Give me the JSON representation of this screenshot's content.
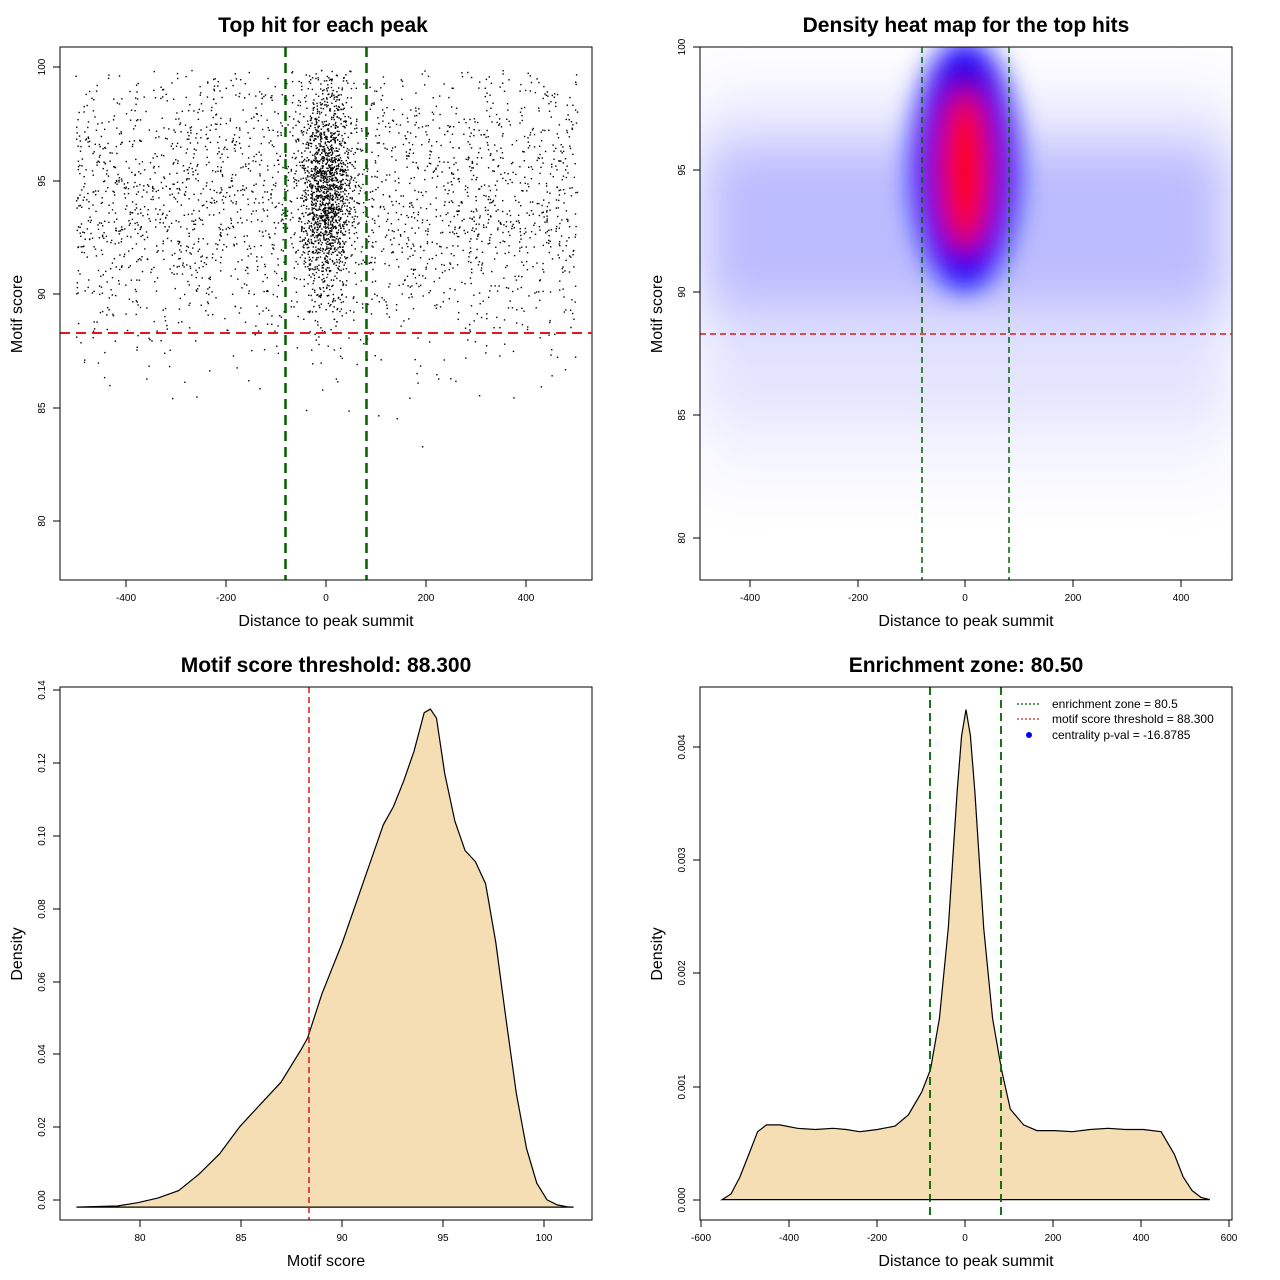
{
  "colors": {
    "threshold_line": "#e0191c",
    "zone_line": "#006400",
    "density_fill": "#f5deb3",
    "heat_low": "#ffffff",
    "heat_mid": "#0000ff",
    "heat_high": "#ff0000",
    "points": "#000000"
  },
  "panels": {
    "scatter": {
      "title": "Top hit for each peak",
      "xlabel": "Distance to peak summit",
      "ylabel": "Motif score",
      "xticks": [
        "-400",
        "-200",
        "0",
        "200",
        "400"
      ],
      "yticks": [
        "80",
        "85",
        "90",
        "95",
        "100"
      ]
    },
    "heatmap": {
      "title": "Density heat map for the top hits",
      "xlabel": "Distance to peak summit",
      "ylabel": "Motif score",
      "xticks": [
        "-400",
        "-200",
        "0",
        "200",
        "400"
      ],
      "yticks": [
        "80",
        "85",
        "90",
        "95",
        "100"
      ]
    },
    "score_density": {
      "title": "Motif score threshold: 88.300",
      "xlabel": "Motif score",
      "ylabel": "Density",
      "xticks": [
        "80",
        "85",
        "90",
        "95",
        "100"
      ],
      "yticks": [
        "0.00",
        "0.02",
        "0.04",
        "0.06",
        "0.08",
        "0.10",
        "0.12",
        "0.14"
      ]
    },
    "distance_density": {
      "title": "Enrichment zone: 80.50",
      "xlabel": "Distance to peak summit",
      "ylabel": "Density",
      "xticks": [
        "-600",
        "-400",
        "-200",
        "0",
        "200",
        "400",
        "600"
      ],
      "yticks": [
        "0.000",
        "0.001",
        "0.002",
        "0.003",
        "0.004"
      ],
      "legend": [
        {
          "label": "enrichment zone = 80.5",
          "kind": "line",
          "color": "#006400"
        },
        {
          "label": "motif score threshold = 88.300",
          "kind": "line",
          "color": "#e0191c"
        },
        {
          "label": "centrality p-val = -16.8785",
          "kind": "dot",
          "color": "#0000ff"
        }
      ]
    }
  },
  "chart_data": [
    {
      "type": "scatter",
      "title": "Top hit for each peak",
      "xlabel": "Distance to peak summit",
      "ylabel": "Motif score",
      "xlim": [
        -530,
        530
      ],
      "ylim": [
        77.5,
        100.9
      ],
      "grid": false,
      "reference_lines": {
        "horizontal": [
          88.3
        ],
        "vertical": [
          -80.5,
          80.5
        ]
      },
      "point_distribution": {
        "x_range": [
          -500,
          500
        ],
        "y_range": [
          78.3,
          99.9
        ],
        "background_score_peak": 94,
        "central_cluster": {
          "center_x": 0,
          "spread_x": 25,
          "center_y": 94.5,
          "spread_y": 2.2
        }
      }
    },
    {
      "type": "heatmap",
      "title": "Density heat map for the top hits",
      "xlabel": "Distance to peak summit",
      "ylabel": "Motif score",
      "xlim": [
        -490,
        490
      ],
      "ylim": [
        78.3,
        100
      ],
      "colorscale": [
        "#ffffff",
        "#0000ff",
        "#ff0000"
      ],
      "peak": {
        "x": 0,
        "y": 94.5
      },
      "reference_lines": {
        "horizontal": [
          88.3
        ],
        "vertical": [
          -80.5,
          80.5
        ]
      }
    },
    {
      "type": "area",
      "title": "Motif score threshold: 88.300",
      "xlabel": "Motif score",
      "ylabel": "Density",
      "xlim": [
        76.2,
        102.2
      ],
      "ylim": [
        -0.0035,
        0.1415
      ],
      "x": [
        77.0,
        79.0,
        80.0,
        81.0,
        82.0,
        83.0,
        84.0,
        85.0,
        86.0,
        87.0,
        88.0,
        88.3,
        89.0,
        90.0,
        91.0,
        92.0,
        92.5,
        93.0,
        93.5,
        94.0,
        94.3,
        94.6,
        95.0,
        95.5,
        96.0,
        96.5,
        97.0,
        97.5,
        98.0,
        98.5,
        99.0,
        99.5,
        100.0,
        100.5,
        101.0,
        101.3
      ],
      "values": [
        0.0,
        0.0003,
        0.0012,
        0.0025,
        0.0045,
        0.009,
        0.0145,
        0.022,
        0.028,
        0.034,
        0.043,
        0.046,
        0.058,
        0.072,
        0.088,
        0.104,
        0.109,
        0.116,
        0.124,
        0.1345,
        0.1355,
        0.133,
        0.118,
        0.105,
        0.097,
        0.094,
        0.088,
        0.072,
        0.051,
        0.031,
        0.016,
        0.0065,
        0.002,
        0.0006,
        0.0001,
        0.0
      ],
      "reference_lines": {
        "vertical": [
          88.3
        ]
      }
    },
    {
      "type": "area",
      "title": "Enrichment zone: 80.50",
      "xlabel": "Distance to peak summit",
      "ylabel": "Density",
      "xlim": [
        -600,
        600
      ],
      "ylim": [
        -0.00018,
        0.00453
      ],
      "x": [
        -550,
        -530,
        -510,
        -490,
        -470,
        -450,
        -420,
        -380,
        -340,
        -300,
        -270,
        -240,
        -220,
        -200,
        -160,
        -130,
        -100,
        -80,
        -60,
        -40,
        -30,
        -20,
        -10,
        0,
        10,
        20,
        30,
        40,
        60,
        80,
        100,
        130,
        160,
        200,
        240,
        280,
        320,
        360,
        400,
        440,
        470,
        490,
        510,
        530,
        550
      ],
      "values": [
        0.0,
        5e-05,
        0.0002,
        0.0004,
        0.0006,
        0.00066,
        0.00066,
        0.00063,
        0.00062,
        0.00063,
        0.00062,
        0.0006,
        0.00061,
        0.00062,
        0.00065,
        0.00075,
        0.00095,
        0.00115,
        0.0016,
        0.0024,
        0.003,
        0.0036,
        0.0041,
        0.00433,
        0.0041,
        0.0036,
        0.003,
        0.0024,
        0.0016,
        0.00115,
        0.0008,
        0.00066,
        0.00061,
        0.00061,
        0.0006,
        0.00062,
        0.00063,
        0.00062,
        0.00062,
        0.0006,
        0.0004,
        0.0002,
        8e-05,
        2e-05,
        0.0
      ],
      "reference_lines": {
        "vertical": [
          -80.5,
          80.5
        ]
      },
      "legend_position": "top-right",
      "series": [
        {
          "name": "enrichment zone = 80.5"
        },
        {
          "name": "motif score threshold = 88.300"
        },
        {
          "name": "centrality p-val = -16.8785"
        }
      ]
    }
  ]
}
